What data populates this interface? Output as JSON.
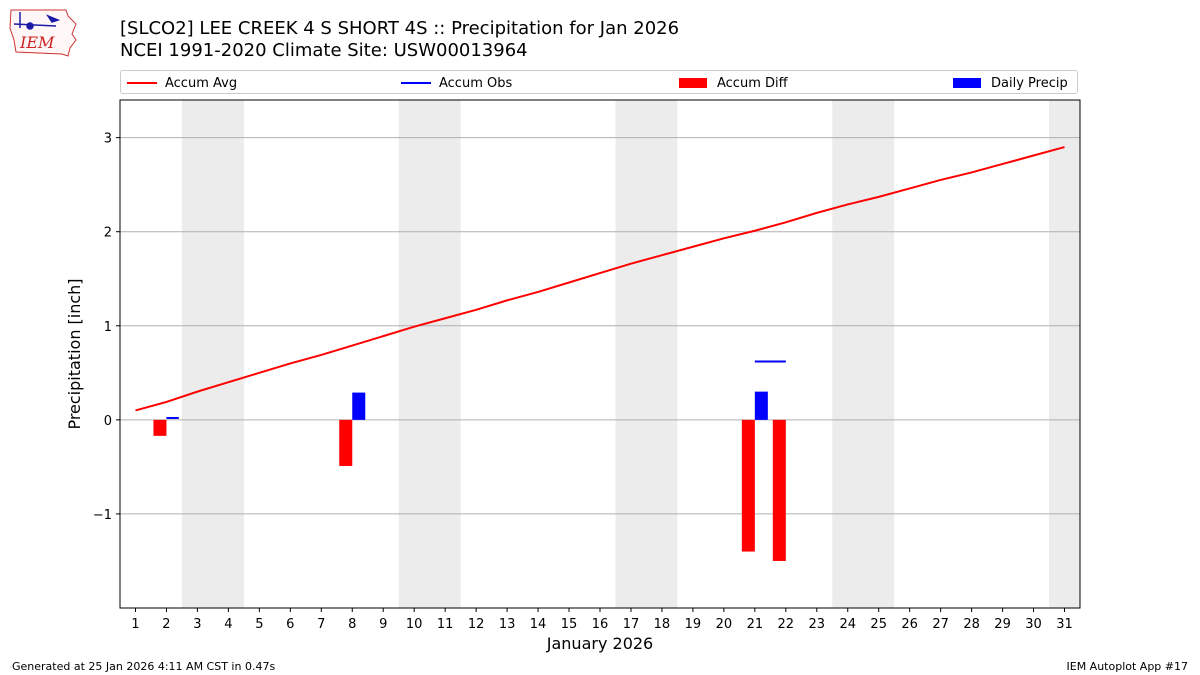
{
  "logo": {
    "text": "IEM"
  },
  "header": {
    "title_line1": "[SLCO2] LEE CREEK 4 S SHORT 4S :: Precipitation for Jan 2026",
    "title_line2": "NCEI 1991-2020 Climate Site: USW00013964"
  },
  "legend": {
    "items": [
      {
        "label": "Accum Avg",
        "color": "#ff0000",
        "kind": "line"
      },
      {
        "label": "Accum Obs",
        "color": "#0000ff",
        "kind": "line"
      },
      {
        "label": "Accum Diff",
        "color": "#ff0000",
        "kind": "box"
      },
      {
        "label": "Daily Precip",
        "color": "#0000ff",
        "kind": "box"
      }
    ]
  },
  "chart_data": {
    "type": "bar",
    "title": "[SLCO2] LEE CREEK 4 S SHORT 4S :: Precipitation for Jan 2026",
    "xlabel": "January 2026",
    "ylabel": "Precipitation [inch]",
    "xlim": [
      0.5,
      31.5
    ],
    "ylim": [
      -2.0,
      3.4
    ],
    "yticks": [
      -1,
      0,
      1,
      2,
      3
    ],
    "ytick_labels": [
      "−1",
      "0",
      "1",
      "2",
      "3"
    ],
    "xticks": [
      1,
      2,
      3,
      4,
      5,
      6,
      7,
      8,
      9,
      10,
      11,
      12,
      13,
      14,
      15,
      16,
      17,
      18,
      19,
      20,
      21,
      22,
      23,
      24,
      25,
      26,
      27,
      28,
      29,
      30,
      31
    ],
    "weekend_bands": [
      [
        2.5,
        4.5
      ],
      [
        9.5,
        11.5
      ],
      [
        16.5,
        18.5
      ],
      [
        23.5,
        25.5
      ],
      [
        30.5,
        31.5
      ]
    ],
    "grid": true,
    "accum_avg": {
      "name": "Accum Avg",
      "x": [
        1,
        2,
        3,
        4,
        5,
        6,
        7,
        8,
        9,
        10,
        11,
        12,
        13,
        14,
        15,
        16,
        17,
        18,
        19,
        20,
        21,
        22,
        23,
        24,
        25,
        26,
        27,
        28,
        29,
        30,
        31
      ],
      "values": [
        0.1,
        0.19,
        0.3,
        0.4,
        0.5,
        0.6,
        0.69,
        0.79,
        0.89,
        0.99,
        1.08,
        1.17,
        1.27,
        1.36,
        1.46,
        1.56,
        1.66,
        1.75,
        1.84,
        1.93,
        2.01,
        2.1,
        2.2,
        2.29,
        2.37,
        2.46,
        2.55,
        2.63,
        2.72,
        2.81,
        2.9
      ],
      "color": "#ff0000"
    },
    "accum_obs": {
      "name": "Accum Obs",
      "segments": [
        {
          "x0": 2.0,
          "x1": 2.4,
          "value": 0.02
        },
        {
          "x0": 21.0,
          "x1": 22.0,
          "value": 0.62
        }
      ],
      "color": "#0000ff"
    },
    "accum_diff": {
      "name": "Accum Diff",
      "bars": [
        {
          "x": 2,
          "value": -0.17
        },
        {
          "x": 8,
          "value": -0.49
        },
        {
          "x": 21,
          "value": -1.4
        },
        {
          "x": 22,
          "value": -1.5
        }
      ],
      "color": "#ff0000"
    },
    "daily_precip": {
      "name": "Daily Precip",
      "bars": [
        {
          "x": 8,
          "value": 0.29
        },
        {
          "x": 21,
          "value": 0.3
        }
      ],
      "color": "#0000ff"
    }
  },
  "footer": {
    "left": "Generated at 25 Jan 2026 4:11 AM CST in 0.47s",
    "right": "IEM Autoplot App #17"
  }
}
